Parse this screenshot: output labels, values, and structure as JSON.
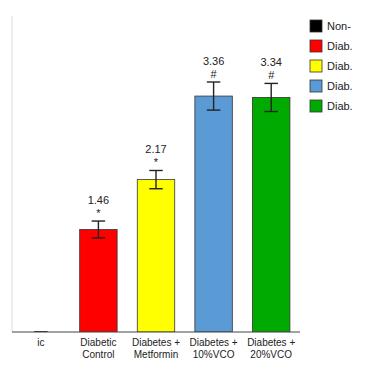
{
  "chart_data": {
    "type": "bar",
    "categories": [
      "ic",
      "Diabetic\nControl",
      "Diabetes +\nMetformin",
      "Diabetes +\n10%VCO",
      "Diabetes +\n20%VCO"
    ],
    "values": [
      0.0,
      1.46,
      2.17,
      3.36,
      3.34
    ],
    "errors": [
      0.0,
      0.12,
      0.13,
      0.2,
      0.2
    ],
    "colors": [
      "#000000",
      "#ff0000",
      "#ffff00",
      "#5b9bd5",
      "#00aa00"
    ],
    "annotations": [
      {
        "category": "Diabetic\nControl",
        "text": "*"
      },
      {
        "category": "Diabetic\nControl",
        "text": "1.46"
      },
      {
        "category": "Diabetes +\nMetformin",
        "text": "*"
      },
      {
        "category": "Diabetes +\nMetformin",
        "text": "2.17"
      },
      {
        "category": "Diabetes +\n10%VCO",
        "text": "#"
      },
      {
        "category": "Diabetes +\n10%VCO",
        "text": "3.36"
      },
      {
        "category": "Diabetes +\n20%VCO",
        "text": "#"
      },
      {
        "category": "Diabetes +\n20%VCO",
        "text": "3.34"
      }
    ],
    "legend_labels": [
      "Non-",
      "Diab.",
      "Diab.",
      "Diab.",
      "Diab."
    ],
    "legend": "right",
    "ylim": [
      0,
      4.5
    ],
    "tick_labels": "x",
    "grid": false
  }
}
